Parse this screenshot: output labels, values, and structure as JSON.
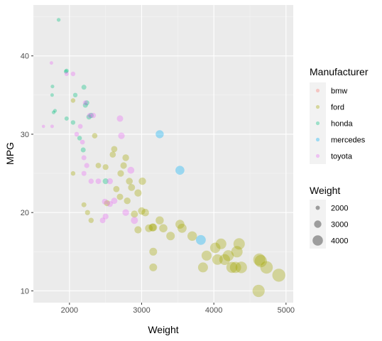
{
  "chart_data": {
    "type": "scatter",
    "xlabel": "Weight",
    "ylabel": "MPG",
    "xlim": [
      1500,
      5100
    ],
    "ylim": [
      8.5,
      46.5
    ],
    "x_ticks": [
      2000,
      3000,
      4000,
      5000
    ],
    "y_ticks": [
      10,
      20,
      30,
      40
    ],
    "grid": true,
    "legend_position": "right",
    "point_alpha": 0.35,
    "colors": {
      "panel": "#ebebeb",
      "grid_major": "#ffffff",
      "grid_minor": "#f5f5f5",
      "bmw": "#f8766d",
      "ford": "#a3a500",
      "honda": "#00bf7d",
      "mercedes": "#00b0f6",
      "toyota": "#e76bf3"
    },
    "color_legend": {
      "title": "Manufacturer",
      "entries": [
        "bmw",
        "ford",
        "honda",
        "mercedes",
        "toyota"
      ]
    },
    "size_legend": {
      "title": "Weight",
      "values": [
        2000,
        3000,
        4000
      ],
      "labels": [
        "2000",
        "3000",
        "4000"
      ]
    },
    "series": [
      {
        "name": "ford",
        "points": [
          [
            2050,
            34.3
          ],
          [
            2050,
            25.0
          ],
          [
            2200,
            21.0
          ],
          [
            2250,
            20.0
          ],
          [
            2300,
            19.0
          ],
          [
            2350,
            29.8
          ],
          [
            2400,
            26.0
          ],
          [
            2500,
            25.8
          ],
          [
            2600,
            27.4
          ],
          [
            2620,
            28.1
          ],
          [
            2650,
            23.0
          ],
          [
            2700,
            22.0
          ],
          [
            2710,
            25.0
          ],
          [
            2750,
            26.0
          ],
          [
            2780,
            27.0
          ],
          [
            2800,
            21.5
          ],
          [
            2830,
            24.0
          ],
          [
            2860,
            23.2
          ],
          [
            2900,
            19.8
          ],
          [
            2950,
            22.5
          ],
          [
            3000,
            20.2
          ],
          [
            3010,
            24.0
          ],
          [
            3050,
            20.0
          ],
          [
            3100,
            18.0
          ],
          [
            3150,
            18.1
          ],
          [
            3160,
            15.0
          ],
          [
            3160,
            13.0
          ],
          [
            3250,
            19.0
          ],
          [
            3300,
            18.0
          ],
          [
            3400,
            17.0
          ],
          [
            3530,
            18.5
          ],
          [
            3560,
            18.0
          ],
          [
            3700,
            17.0
          ],
          [
            3850,
            13.0
          ],
          [
            3900,
            14.5
          ],
          [
            4020,
            15.5
          ],
          [
            4050,
            14.0
          ],
          [
            4100,
            16.0
          ],
          [
            4150,
            14.0
          ],
          [
            4200,
            14.5
          ],
          [
            4250,
            13.0
          ],
          [
            4300,
            13.0
          ],
          [
            4320,
            15.0
          ],
          [
            4350,
            16.0
          ],
          [
            4380,
            13.0
          ],
          [
            4620,
            10.0
          ],
          [
            4630,
            14.0
          ],
          [
            4650,
            13.8
          ],
          [
            4730,
            13.0
          ],
          [
            4900,
            12.0
          ],
          [
            2520,
            21.2
          ],
          [
            2950,
            17.8
          ],
          [
            3160,
            18.1
          ]
        ]
      },
      {
        "name": "honda",
        "points": [
          [
            1850,
            44.6
          ],
          [
            1950,
            38.0
          ],
          [
            1960,
            38.1
          ],
          [
            1760,
            35.0
          ],
          [
            1765,
            36.1
          ],
          [
            1800,
            33.0
          ],
          [
            1780,
            32.8
          ],
          [
            2050,
            31.5
          ],
          [
            1960,
            32.0
          ],
          [
            2200,
            36.0
          ],
          [
            2220,
            33.7
          ],
          [
            2240,
            34.0
          ],
          [
            2300,
            32.4
          ],
          [
            2270,
            32.2
          ],
          [
            2140,
            29.5
          ],
          [
            2190,
            28.0
          ],
          [
            2500,
            24.0
          ],
          [
            2080,
            35.0
          ]
        ]
      },
      {
        "name": "mercedes",
        "points": [
          [
            3250,
            30.0
          ],
          [
            3530,
            25.4
          ],
          [
            3820,
            16.5
          ]
        ]
      },
      {
        "name": "toyota",
        "points": [
          [
            1640,
            31.0
          ],
          [
            1750,
            39.1
          ],
          [
            1760,
            31.0
          ],
          [
            1960,
            37.7
          ],
          [
            2050,
            37.7
          ],
          [
            2100,
            30.0
          ],
          [
            2150,
            31.0
          ],
          [
            2180,
            29.0
          ],
          [
            2200,
            27.0
          ],
          [
            2220,
            34.0
          ],
          [
            2240,
            26.0
          ],
          [
            2200,
            25.0
          ],
          [
            2280,
            32.4
          ],
          [
            2330,
            32.4
          ],
          [
            2300,
            24.0
          ],
          [
            2400,
            24.0
          ],
          [
            2460,
            19.0
          ],
          [
            2490,
            21.4
          ],
          [
            2560,
            21.1
          ],
          [
            2620,
            21.5
          ],
          [
            2560,
            24.0
          ],
          [
            2700,
            32.0
          ],
          [
            2720,
            29.8
          ],
          [
            2780,
            20.0
          ],
          [
            2850,
            25.4
          ],
          [
            2900,
            19.0
          ],
          [
            2500,
            19.5
          ]
        ]
      }
    ]
  }
}
